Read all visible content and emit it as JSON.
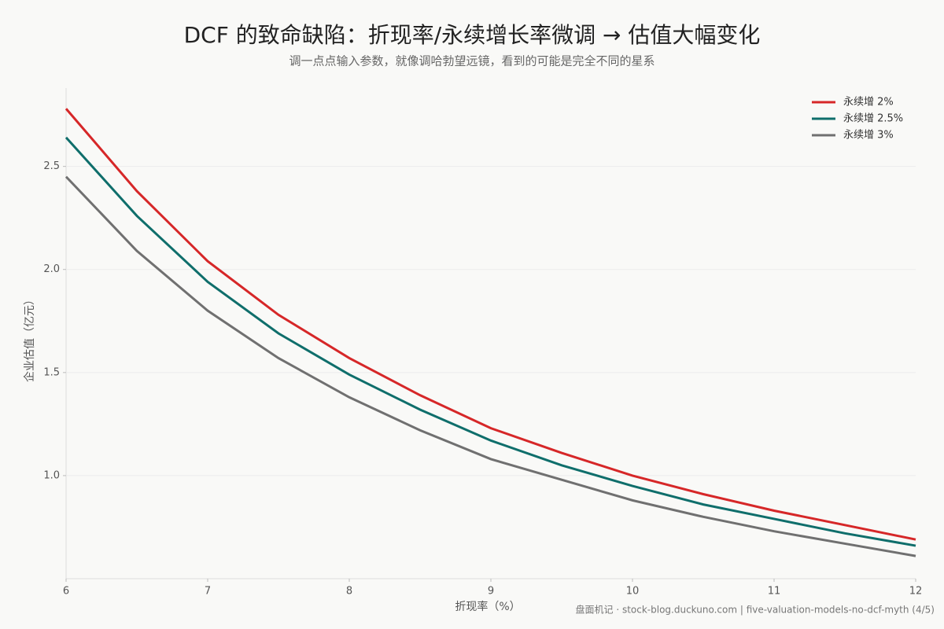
{
  "chart_data": {
    "type": "line",
    "title": "DCF 的致命缺陷：折现率/永续增长率微调 → 估值大幅变化",
    "subtitle": "调一点点输入参数，就像调哈勃望远镜，看到的可能是完全不同的星系",
    "x_label": "折现率（%）",
    "y_label": "企业估值（亿元）",
    "footer": "盘面机记 · stock-blog.duckuno.com  |  five-valuation-models-no-dcf-myth  (4/5)",
    "x": [
      6,
      6.5,
      7,
      7.5,
      8,
      8.5,
      9,
      9.5,
      10,
      10.5,
      11,
      11.5,
      12
    ],
    "series": [
      {
        "name": "永续增 2%",
        "color": "#d62728",
        "values": [
          2.78,
          2.38,
          2.04,
          1.78,
          1.57,
          1.39,
          1.23,
          1.11,
          1.0,
          0.91,
          0.83,
          0.76,
          0.69
        ]
      },
      {
        "name": "永续增 2.5%",
        "color": "#0f6e6b",
        "values": [
          2.64,
          2.26,
          1.94,
          1.69,
          1.49,
          1.32,
          1.17,
          1.05,
          0.95,
          0.86,
          0.79,
          0.72,
          0.66
        ]
      },
      {
        "name": "永续增 3%",
        "color": "#707070",
        "values": [
          2.45,
          2.09,
          1.8,
          1.57,
          1.38,
          1.22,
          1.08,
          0.98,
          0.88,
          0.8,
          0.73,
          0.67,
          0.61
        ]
      }
    ],
    "xlim": [
      6,
      12
    ],
    "xticks": [
      6,
      7,
      8,
      9,
      10,
      11,
      12
    ],
    "ylim": [
      0.5,
      2.88
    ],
    "yticks": [
      {
        "value": 1,
        "label": "1.0"
      },
      1.5,
      {
        "value": 2,
        "label": "2.0"
      },
      2.5
    ],
    "grid": true,
    "legend": "upper right"
  }
}
